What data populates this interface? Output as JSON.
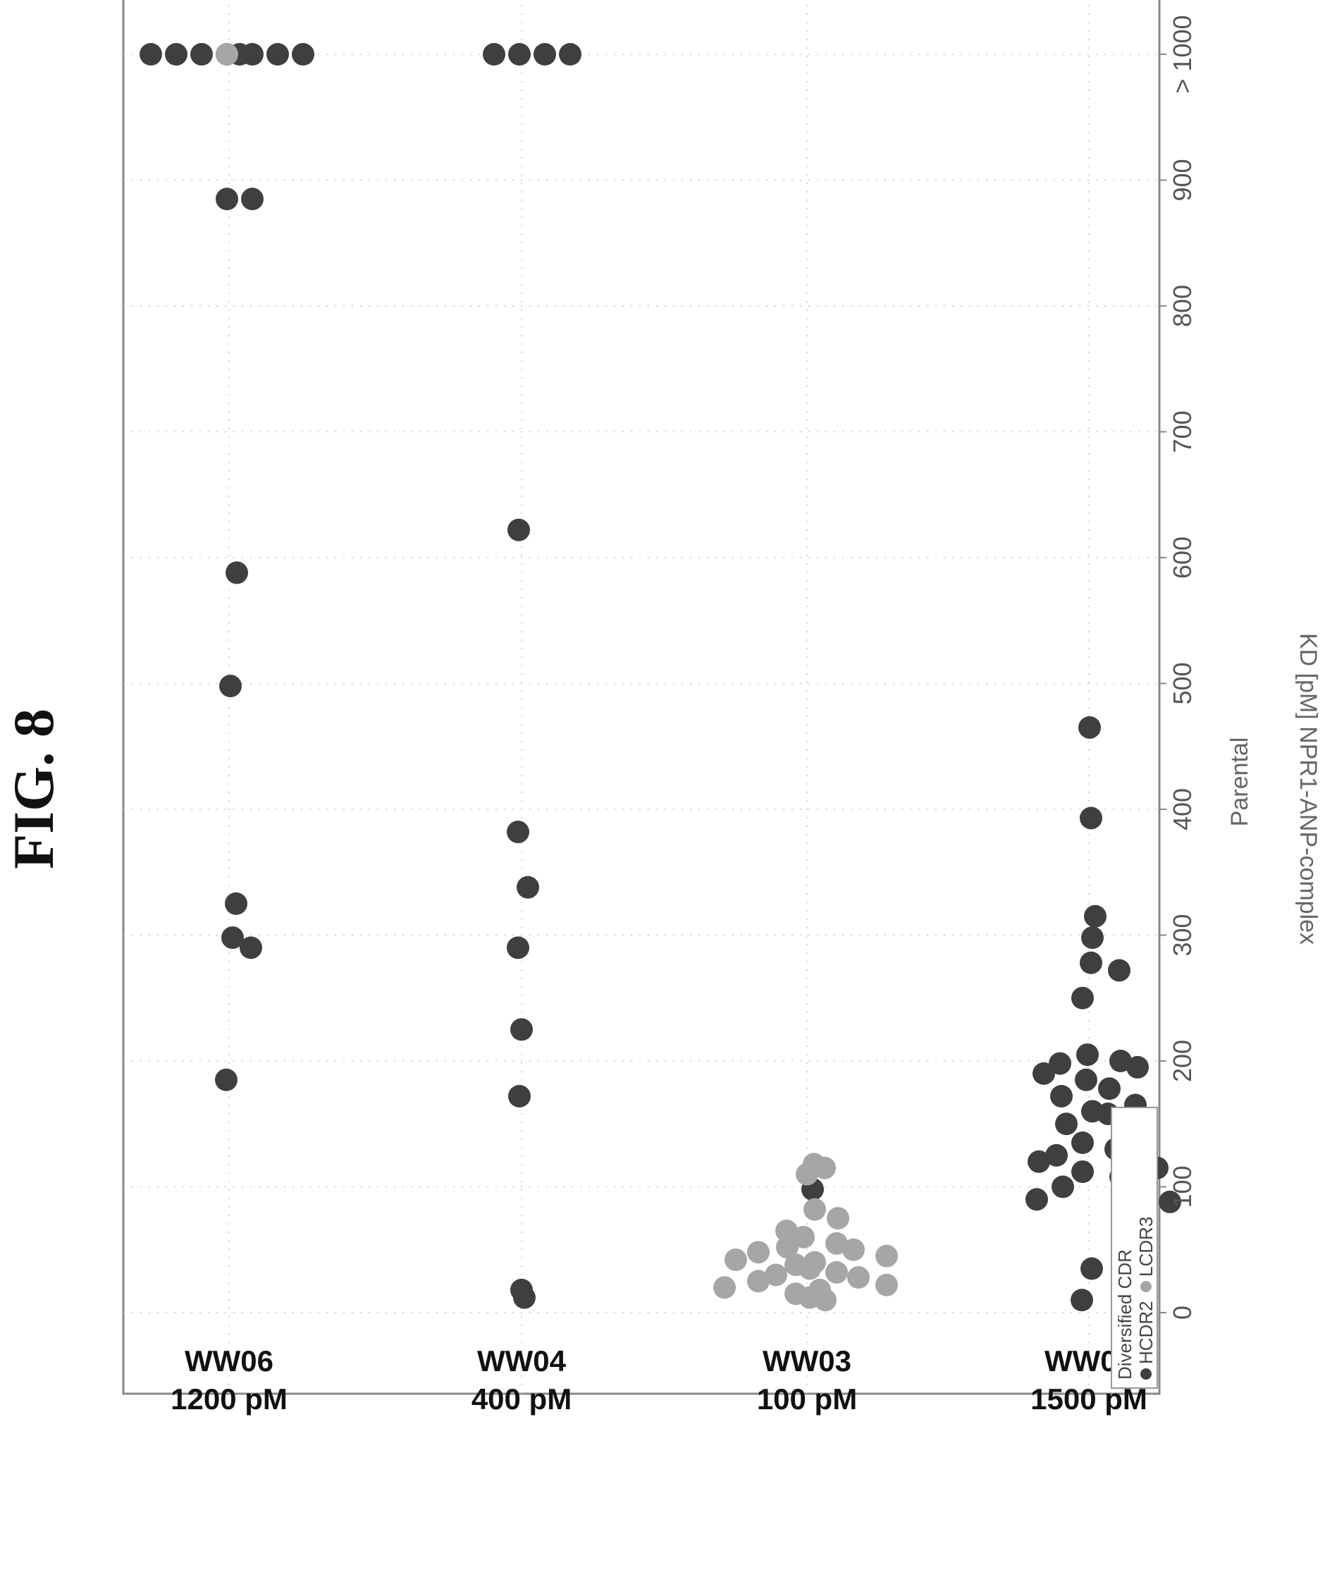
{
  "figure": {
    "title": "FIG. 8"
  },
  "colors": {
    "HCDR2": "#3f3f3f",
    "LCDR3": "#a6a6a6",
    "frame": "#888888",
    "grid": "#c8c8c8"
  },
  "chart_data": {
    "type": "scatter",
    "xlabel": "Parental",
    "ylabel": "KD [pM] NPR1-ANP-complex",
    "categories": [
      {
        "name": "WW01",
        "affinity": "1500 pM"
      },
      {
        "name": "WW03",
        "affinity": "100 pM"
      },
      {
        "name": "WW04",
        "affinity": "400 pM"
      },
      {
        "name": "WW06",
        "affinity": "1200 pM"
      }
    ],
    "yticks": [
      "0",
      "100",
      "200",
      "300",
      "400",
      "500",
      "600",
      "700",
      "800",
      "900",
      "> 1000"
    ],
    "ylim": [
      0,
      1000
    ],
    "legend": {
      "title": "Diversified CDR",
      "entries": [
        "HCDR2",
        "LCDR3"
      ],
      "placement": "top-left"
    },
    "series": [
      {
        "name": "HCDR2",
        "points": [
          {
            "cat": 0,
            "y": 465
          },
          {
            "cat": 0,
            "y": 393
          },
          {
            "cat": 0,
            "y": 315
          },
          {
            "cat": 0,
            "y": 298
          },
          {
            "cat": 0,
            "y": 278
          },
          {
            "cat": 0,
            "y": 272
          },
          {
            "cat": 0,
            "y": 250
          },
          {
            "cat": 0,
            "y": 205
          },
          {
            "cat": 0,
            "y": 200
          },
          {
            "cat": 0,
            "y": 198
          },
          {
            "cat": 0,
            "y": 195
          },
          {
            "cat": 0,
            "y": 190
          },
          {
            "cat": 0,
            "y": 185
          },
          {
            "cat": 0,
            "y": 178
          },
          {
            "cat": 0,
            "y": 172
          },
          {
            "cat": 0,
            "y": 165
          },
          {
            "cat": 0,
            "y": 160
          },
          {
            "cat": 0,
            "y": 158
          },
          {
            "cat": 0,
            "y": 150
          },
          {
            "cat": 0,
            "y": 138
          },
          {
            "cat": 0,
            "y": 135
          },
          {
            "cat": 0,
            "y": 130
          },
          {
            "cat": 0,
            "y": 125
          },
          {
            "cat": 0,
            "y": 122
          },
          {
            "cat": 0,
            "y": 120
          },
          {
            "cat": 0,
            "y": 115
          },
          {
            "cat": 0,
            "y": 112
          },
          {
            "cat": 0,
            "y": 108
          },
          {
            "cat": 0,
            "y": 100
          },
          {
            "cat": 0,
            "y": 95
          },
          {
            "cat": 0,
            "y": 90
          },
          {
            "cat": 0,
            "y": 88
          },
          {
            "cat": 0,
            "y": 35
          },
          {
            "cat": 0,
            "y": 10
          },
          {
            "cat": 1,
            "y": 98
          },
          {
            "cat": 2,
            "y": 1000
          },
          {
            "cat": 2,
            "y": 1000
          },
          {
            "cat": 2,
            "y": 1000
          },
          {
            "cat": 2,
            "y": 1000
          },
          {
            "cat": 2,
            "y": 622
          },
          {
            "cat": 2,
            "y": 382
          },
          {
            "cat": 2,
            "y": 338
          },
          {
            "cat": 2,
            "y": 290
          },
          {
            "cat": 2,
            "y": 225
          },
          {
            "cat": 2,
            "y": 172
          },
          {
            "cat": 2,
            "y": 18
          },
          {
            "cat": 2,
            "y": 12
          },
          {
            "cat": 3,
            "y": 1000
          },
          {
            "cat": 3,
            "y": 1000
          },
          {
            "cat": 3,
            "y": 1000
          },
          {
            "cat": 3,
            "y": 1000
          },
          {
            "cat": 3,
            "y": 1000
          },
          {
            "cat": 3,
            "y": 1000
          },
          {
            "cat": 3,
            "y": 1000
          },
          {
            "cat": 3,
            "y": 1000
          },
          {
            "cat": 3,
            "y": 885
          },
          {
            "cat": 3,
            "y": 885
          },
          {
            "cat": 3,
            "y": 588
          },
          {
            "cat": 3,
            "y": 498
          },
          {
            "cat": 3,
            "y": 325
          },
          {
            "cat": 3,
            "y": 298
          },
          {
            "cat": 3,
            "y": 290
          },
          {
            "cat": 3,
            "y": 185
          }
        ]
      },
      {
        "name": "LCDR3",
        "points": [
          {
            "cat": 1,
            "y": 118
          },
          {
            "cat": 1,
            "y": 115
          },
          {
            "cat": 1,
            "y": 110
          },
          {
            "cat": 1,
            "y": 82
          },
          {
            "cat": 1,
            "y": 75
          },
          {
            "cat": 1,
            "y": 65
          },
          {
            "cat": 1,
            "y": 60
          },
          {
            "cat": 1,
            "y": 55
          },
          {
            "cat": 1,
            "y": 52
          },
          {
            "cat": 1,
            "y": 50
          },
          {
            "cat": 1,
            "y": 48
          },
          {
            "cat": 1,
            "y": 45
          },
          {
            "cat": 1,
            "y": 42
          },
          {
            "cat": 1,
            "y": 40
          },
          {
            "cat": 1,
            "y": 38
          },
          {
            "cat": 1,
            "y": 35
          },
          {
            "cat": 1,
            "y": 32
          },
          {
            "cat": 1,
            "y": 30
          },
          {
            "cat": 1,
            "y": 28
          },
          {
            "cat": 1,
            "y": 25
          },
          {
            "cat": 1,
            "y": 22
          },
          {
            "cat": 1,
            "y": 20
          },
          {
            "cat": 1,
            "y": 18
          },
          {
            "cat": 1,
            "y": 15
          },
          {
            "cat": 1,
            "y": 12
          },
          {
            "cat": 1,
            "y": 10
          },
          {
            "cat": 3,
            "y": 1000
          }
        ]
      }
    ]
  }
}
